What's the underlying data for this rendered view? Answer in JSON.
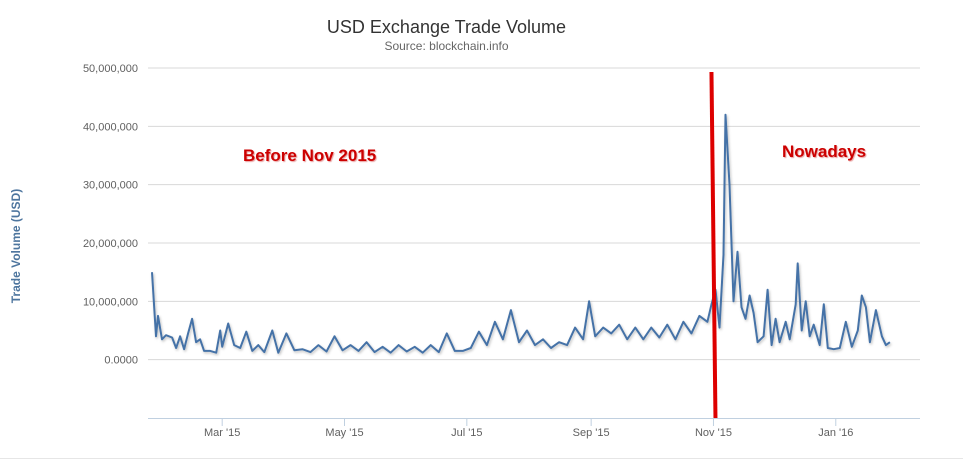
{
  "chart_data": {
    "type": "line",
    "title": "USD Exchange Trade Volume",
    "subtitle": "Source: blockchain.info",
    "ylabel": "Trade Volume (USD)",
    "xlabel": "",
    "ylim": [
      -10000000,
      50000000
    ],
    "xlim": [
      "2015-01-23",
      "2016-02-12"
    ],
    "grid": true,
    "y_ticks": [
      {
        "value": 50000000,
        "label": "50,000,000"
      },
      {
        "value": 40000000,
        "label": "40,000,000"
      },
      {
        "value": 30000000,
        "label": "30,000,000"
      },
      {
        "value": 20000000,
        "label": "20,000,000"
      },
      {
        "value": 10000000,
        "label": "10,000,000"
      },
      {
        "value": 0,
        "label": "0.0000"
      }
    ],
    "x_ticks": [
      {
        "date": "2015-03-01",
        "label": "Mar '15"
      },
      {
        "date": "2015-05-01",
        "label": "May '15"
      },
      {
        "date": "2015-07-01",
        "label": "Jul '15"
      },
      {
        "date": "2015-09-01",
        "label": "Sep '15"
      },
      {
        "date": "2015-11-01",
        "label": "Nov '15"
      },
      {
        "date": "2016-01-01",
        "label": "Jan '16"
      }
    ],
    "series": [
      {
        "color": "#4572a7",
        "points": [
          [
            "2015-01-25",
            15000000
          ],
          [
            "2015-01-27",
            4000000
          ],
          [
            "2015-01-28",
            7500000
          ],
          [
            "2015-01-30",
            3500000
          ],
          [
            "2015-02-01",
            4200000
          ],
          [
            "2015-02-04",
            3800000
          ],
          [
            "2015-02-06",
            2000000
          ],
          [
            "2015-02-08",
            4000000
          ],
          [
            "2015-02-10",
            1800000
          ],
          [
            "2015-02-12",
            4500000
          ],
          [
            "2015-02-14",
            7000000
          ],
          [
            "2015-02-16",
            3000000
          ],
          [
            "2015-02-18",
            3500000
          ],
          [
            "2015-02-20",
            1500000
          ],
          [
            "2015-02-23",
            1500000
          ],
          [
            "2015-02-26",
            1200000
          ],
          [
            "2015-02-28",
            5000000
          ],
          [
            "2015-03-01",
            2200000
          ],
          [
            "2015-03-04",
            6200000
          ],
          [
            "2015-03-07",
            2500000
          ],
          [
            "2015-03-10",
            2000000
          ],
          [
            "2015-03-13",
            4800000
          ],
          [
            "2015-03-16",
            1500000
          ],
          [
            "2015-03-19",
            2500000
          ],
          [
            "2015-03-22",
            1300000
          ],
          [
            "2015-03-26",
            5000000
          ],
          [
            "2015-03-29",
            1200000
          ],
          [
            "2015-04-02",
            4500000
          ],
          [
            "2015-04-06",
            1600000
          ],
          [
            "2015-04-10",
            1800000
          ],
          [
            "2015-04-14",
            1300000
          ],
          [
            "2015-04-18",
            2500000
          ],
          [
            "2015-04-22",
            1400000
          ],
          [
            "2015-04-26",
            4000000
          ],
          [
            "2015-04-30",
            1600000
          ],
          [
            "2015-05-04",
            2500000
          ],
          [
            "2015-05-08",
            1500000
          ],
          [
            "2015-05-12",
            3000000
          ],
          [
            "2015-05-16",
            1300000
          ],
          [
            "2015-05-20",
            2200000
          ],
          [
            "2015-05-24",
            1200000
          ],
          [
            "2015-05-28",
            2500000
          ],
          [
            "2015-06-01",
            1400000
          ],
          [
            "2015-06-05",
            2200000
          ],
          [
            "2015-06-09",
            1200000
          ],
          [
            "2015-06-13",
            2500000
          ],
          [
            "2015-06-17",
            1300000
          ],
          [
            "2015-06-21",
            4500000
          ],
          [
            "2015-06-25",
            1500000
          ],
          [
            "2015-06-29",
            1500000
          ],
          [
            "2015-07-03",
            2000000
          ],
          [
            "2015-07-07",
            4800000
          ],
          [
            "2015-07-11",
            2500000
          ],
          [
            "2015-07-15",
            6500000
          ],
          [
            "2015-07-19",
            3500000
          ],
          [
            "2015-07-23",
            8500000
          ],
          [
            "2015-07-27",
            3000000
          ],
          [
            "2015-07-31",
            5000000
          ],
          [
            "2015-08-04",
            2500000
          ],
          [
            "2015-08-08",
            3500000
          ],
          [
            "2015-08-12",
            2000000
          ],
          [
            "2015-08-16",
            3000000
          ],
          [
            "2015-08-20",
            2500000
          ],
          [
            "2015-08-24",
            5500000
          ],
          [
            "2015-08-28",
            3500000
          ],
          [
            "2015-08-31",
            10000000
          ],
          [
            "2015-09-03",
            4000000
          ],
          [
            "2015-09-07",
            5500000
          ],
          [
            "2015-09-11",
            4500000
          ],
          [
            "2015-09-15",
            6000000
          ],
          [
            "2015-09-19",
            3500000
          ],
          [
            "2015-09-23",
            5500000
          ],
          [
            "2015-09-27",
            3500000
          ],
          [
            "2015-10-01",
            5500000
          ],
          [
            "2015-10-05",
            3800000
          ],
          [
            "2015-10-09",
            6000000
          ],
          [
            "2015-10-13",
            3500000
          ],
          [
            "2015-10-17",
            6500000
          ],
          [
            "2015-10-21",
            4500000
          ],
          [
            "2015-10-25",
            7500000
          ],
          [
            "2015-10-29",
            6500000
          ],
          [
            "2015-10-31",
            9500000
          ],
          [
            "2015-11-02",
            12000000
          ],
          [
            "2015-11-04",
            5500000
          ],
          [
            "2015-11-06",
            18000000
          ],
          [
            "2015-11-07",
            42000000
          ],
          [
            "2015-11-09",
            30000000
          ],
          [
            "2015-11-11",
            10000000
          ],
          [
            "2015-11-13",
            18500000
          ],
          [
            "2015-11-15",
            9000000
          ],
          [
            "2015-11-17",
            7000000
          ],
          [
            "2015-11-19",
            11000000
          ],
          [
            "2015-11-21",
            8000000
          ],
          [
            "2015-11-23",
            3000000
          ],
          [
            "2015-11-26",
            4000000
          ],
          [
            "2015-11-28",
            12000000
          ],
          [
            "2015-11-30",
            2500000
          ],
          [
            "2015-12-02",
            7000000
          ],
          [
            "2015-12-04",
            3000000
          ],
          [
            "2015-12-07",
            6500000
          ],
          [
            "2015-12-09",
            3500000
          ],
          [
            "2015-12-12",
            9500000
          ],
          [
            "2015-12-13",
            16500000
          ],
          [
            "2015-12-15",
            5000000
          ],
          [
            "2015-12-17",
            10000000
          ],
          [
            "2015-12-19",
            4000000
          ],
          [
            "2015-12-21",
            6000000
          ],
          [
            "2015-12-24",
            2500000
          ],
          [
            "2015-12-26",
            9500000
          ],
          [
            "2015-12-28",
            2000000
          ],
          [
            "2015-12-31",
            1800000
          ],
          [
            "2016-01-03",
            2000000
          ],
          [
            "2016-01-06",
            6500000
          ],
          [
            "2016-01-09",
            2200000
          ],
          [
            "2016-01-12",
            5000000
          ],
          [
            "2016-01-14",
            11000000
          ],
          [
            "2016-01-16",
            9000000
          ],
          [
            "2016-01-18",
            3000000
          ],
          [
            "2016-01-21",
            8500000
          ],
          [
            "2016-01-24",
            4000000
          ],
          [
            "2016-01-26",
            2500000
          ],
          [
            "2016-01-28",
            3000000
          ]
        ]
      }
    ],
    "markers": [
      {
        "type": "vertical-line",
        "x": "2015-11-01",
        "color": "#dd0000"
      }
    ],
    "annotations": [
      {
        "text": "Before Nov 2015"
      },
      {
        "text": "Nowadays"
      }
    ]
  }
}
